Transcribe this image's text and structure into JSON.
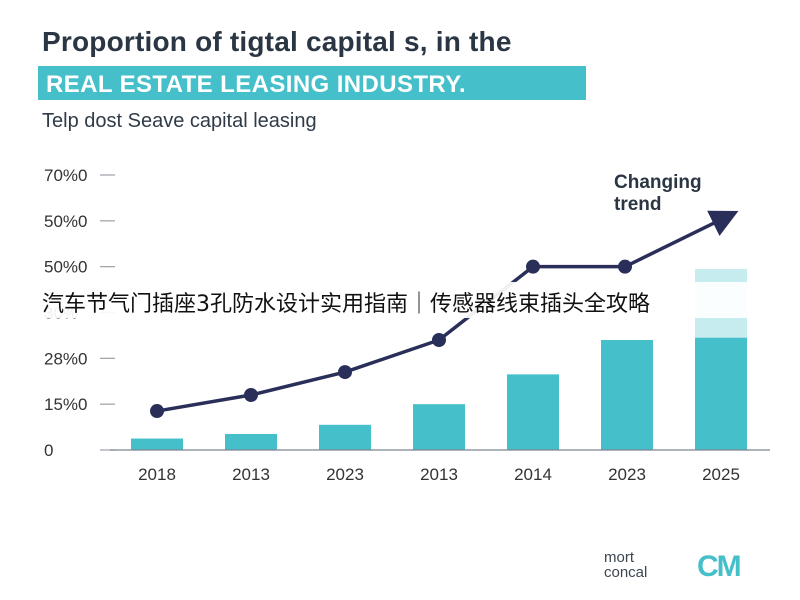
{
  "header": {
    "title": "Proportion of tigtal capital s, in the",
    "banner": "REAL ESTATE LEASING INDUSTRY.",
    "subtitle": "Telp dost Seave capital leasing"
  },
  "overlay_caption": "汽车节气门插座3孔防水设计实用指南｜传感器线束插头全攻略",
  "brand": {
    "line1": "mort",
    "line2": "concal",
    "logo": "CM"
  },
  "colors": {
    "bar": "#45bfc9",
    "bar_light": "#c6ecef",
    "line": "#2a2f5a",
    "title": "#2b3644",
    "axis_text": "#333333"
  },
  "chart_data": {
    "type": "bar",
    "categories": [
      "2018",
      "2013",
      "2023",
      "2013",
      "2014",
      "2023",
      "2025"
    ],
    "ytick_labels": [
      "0",
      "15%0",
      "28%0",
      "30%",
      "50%0",
      "50%0",
      "70%0"
    ],
    "yrange": [
      0,
      6
    ],
    "series": [
      {
        "kind": "bar",
        "values": [
          0.25,
          0.35,
          0.55,
          1.0,
          1.65,
          2.4,
          2.45
        ]
      },
      {
        "kind": "bar-extension",
        "values": [
          null,
          null,
          null,
          null,
          null,
          null,
          3.95
        ]
      },
      {
        "kind": "line",
        "values": [
          0.85,
          1.2,
          1.7,
          2.4,
          4.0,
          4.0,
          5.2
        ]
      }
    ],
    "annotation": {
      "text": "Changing trend",
      "lines": [
        "Changing",
        "trend"
      ]
    },
    "grid": false
  }
}
